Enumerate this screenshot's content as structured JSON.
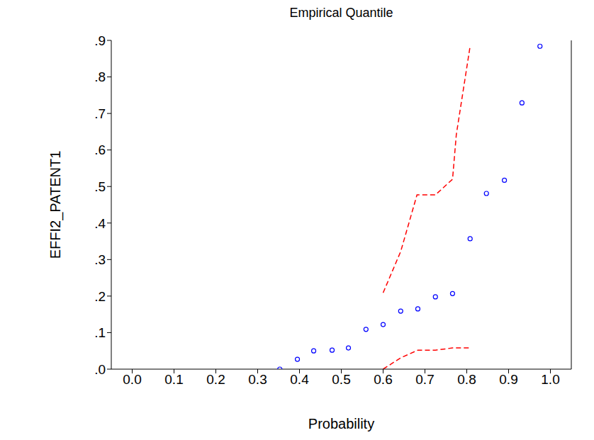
{
  "chart_data": {
    "type": "scatter",
    "title": "Empirical Quantile",
    "x_label": "Probability",
    "y_label": "EFFI2_PATENT1",
    "xlim": [
      -0.05,
      1.05
    ],
    "ylim": [
      0,
      0.9
    ],
    "xticks": [
      {
        "value": 0,
        "label": "0.0"
      },
      {
        "value": 0.1,
        "label": "0.1"
      },
      {
        "value": 0.2,
        "label": "0.2"
      },
      {
        "value": 0.3,
        "label": "0.3"
      },
      {
        "value": 0.4,
        "label": "0.4"
      },
      {
        "value": 0.5,
        "label": "0.5"
      },
      {
        "value": 0.6,
        "label": "0.6"
      },
      {
        "value": 0.7,
        "label": "0.7"
      },
      {
        "value": 0.8,
        "label": "0.8"
      },
      {
        "value": 0.9,
        "label": "0.9"
      },
      {
        "value": 1,
        "label": "1.0"
      }
    ],
    "yticks": [
      {
        "value": 0,
        "label": ".0"
      },
      {
        "value": 0.1,
        "label": ".1"
      },
      {
        "value": 0.2,
        "label": ".2"
      },
      {
        "value": 0.3,
        "label": ".3"
      },
      {
        "value": 0.4,
        "label": ".4"
      },
      {
        "value": 0.5,
        "label": ".5"
      },
      {
        "value": 0.6,
        "label": ".6"
      },
      {
        "value": 0.7,
        "label": ".7"
      },
      {
        "value": 0.8,
        "label": ".8"
      },
      {
        "value": 0.9,
        "label": ".9"
      }
    ],
    "series": [
      {
        "type": "scatter",
        "color": "#0000ff",
        "marker": "circle",
        "x": [
          0.353,
          0.395,
          0.434,
          0.478,
          0.517,
          0.559,
          0.6,
          0.642,
          0.683,
          0.725,
          0.766,
          0.808,
          0.847,
          0.89,
          0.932,
          0.975
        ],
        "values": [
          0.0,
          0.027,
          0.05,
          0.052,
          0.058,
          0.109,
          0.122,
          0.159,
          0.165,
          0.198,
          0.207,
          0.357,
          0.481,
          0.517,
          0.729,
          0.884
        ]
      },
      {
        "type": "line",
        "color": "#ff0000",
        "line_style": "dashed",
        "x": [
          0.6,
          0.642,
          0.681,
          0.725,
          0.766,
          0.775,
          0.808
        ],
        "values": [
          0.209,
          0.322,
          0.477,
          0.477,
          0.52,
          0.642,
          0.884
        ]
      },
      {
        "type": "line",
        "color": "#ff0000",
        "line_style": "dashed",
        "x": [
          0.6,
          0.642,
          0.683,
          0.725,
          0.766,
          0.808
        ],
        "values": [
          0.0,
          0.031,
          0.052,
          0.052,
          0.058,
          0.058
        ]
      }
    ]
  }
}
